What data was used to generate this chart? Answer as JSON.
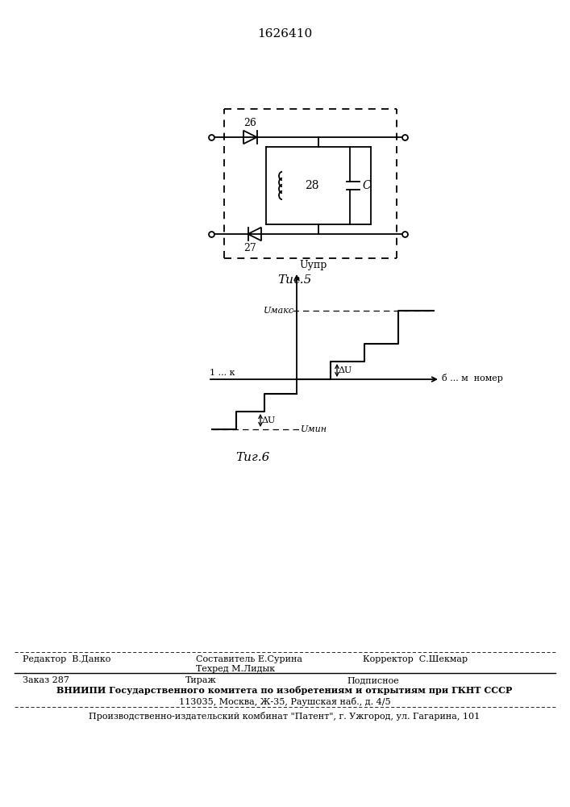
{
  "title_number": "1626410",
  "fig5_label": "Τиг.5",
  "fig6_label": "Τиг.6",
  "label_26": "26",
  "label_27": "27",
  "label_28": "28",
  "label_C": "C",
  "label_Uupr": "Uупр",
  "label_Umax": "Uмакс",
  "label_Umin": "Uмин",
  "label_deltaU": "ΔU",
  "label_xaxis": "б ... м  номер",
  "label_left": "1 ... к",
  "footer_line1_col1": "Редактор  В.Данко",
  "footer_line1_col2": "Составитель Е.Сурина",
  "footer_line2_col2": "Техред М.Лидык",
  "footer_line2_col3": "Корректор  С.Шекмар",
  "footer_line3_col1": "Заказ 287",
  "footer_line3_col2": "Тираж",
  "footer_line3_col3": "Подписное",
  "footer_line4": "ВНИИПИ Государственного комитета по изобретениям и открытиям при ГКНТ СССР",
  "footer_line5": "113035, Москва, Ж-35, Раушская наб., д. 4/5",
  "footer_line6": "Производственно-издательский комбинат \"Патент\", г. Ужгород, ул. Гагарина, 101",
  "bg_color": "#ffffff",
  "line_color": "#000000"
}
